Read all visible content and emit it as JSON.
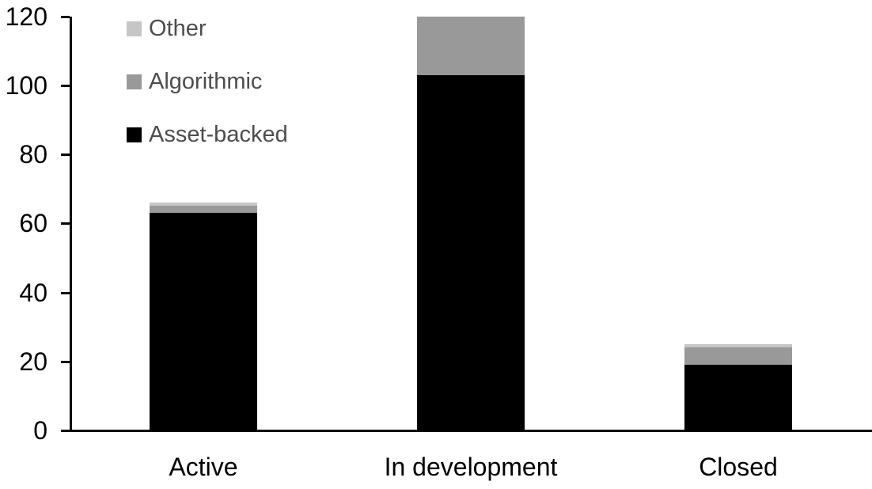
{
  "chart_data": {
    "type": "bar",
    "stacked": true,
    "title": "",
    "xlabel": "",
    "ylabel": "",
    "categories": [
      "Active",
      "In development",
      "Closed"
    ],
    "series": [
      {
        "name": "Asset-backed",
        "color": "#000000",
        "values": [
          63,
          103,
          19
        ]
      },
      {
        "name": "Algorithmic",
        "color": "#999999",
        "values": [
          2,
          17,
          5
        ]
      },
      {
        "name": "Other",
        "color": "#c6c6c6",
        "values": [
          1,
          0,
          1
        ]
      }
    ],
    "totals": [
      66,
      120,
      25
    ],
    "y_axis": {
      "min": 0,
      "max": 120,
      "tick_interval": 20,
      "ticks": [
        "0",
        "20",
        "40",
        "60",
        "80",
        "100",
        "120"
      ]
    },
    "legend": {
      "position": "top-left",
      "order": [
        "Other",
        "Algorithmic",
        "Asset-backed"
      ]
    },
    "grid": false,
    "colors": {
      "axis": "#000000",
      "tick_label_text": "#000000",
      "category_label_text": "#000000",
      "legend_text": "#4d4d4d",
      "background": "#ffffff"
    }
  }
}
